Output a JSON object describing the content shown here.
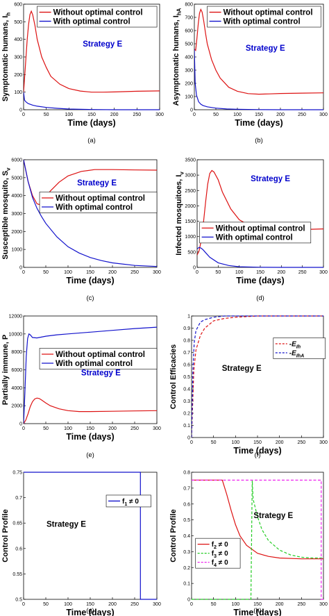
{
  "chart_data": [
    {
      "type": "line",
      "caption": "(a)",
      "xlabel": "Time (days)",
      "ylabel": "Symptomatic humans, I_h",
      "xlim": [
        0,
        300
      ],
      "ylim": [
        0,
        600
      ],
      "xticks": [
        0,
        50,
        100,
        150,
        200,
        250,
        300
      ],
      "yticks": [
        0,
        100,
        200,
        300,
        400,
        500,
        600
      ],
      "annotation": {
        "text": "Strategy E",
        "color": "#0000cc"
      },
      "legend": {
        "position": "top",
        "entries": [
          "Without optimal control",
          "With optimal control"
        ]
      },
      "series": [
        {
          "name": "Without optimal control",
          "color": "#dd1111",
          "x": [
            0,
            2,
            5,
            8,
            11,
            14,
            17,
            20,
            25,
            30,
            40,
            50,
            60,
            80,
            100,
            125,
            150,
            175,
            200,
            225,
            250,
            275,
            300
          ],
          "y": [
            100,
            175,
            290,
            400,
            485,
            540,
            560,
            540,
            480,
            400,
            300,
            240,
            190,
            145,
            120,
            106,
            100,
            100,
            101,
            103,
            105,
            106,
            107
          ]
        },
        {
          "name": "With optimal control",
          "color": "#1111cc",
          "x": [
            0,
            2,
            5,
            10,
            20,
            30,
            50,
            75,
            100,
            150,
            200,
            250,
            300
          ],
          "y": [
            100,
            55,
            45,
            35,
            26,
            20,
            13,
            8,
            4,
            1,
            0,
            0,
            0
          ]
        }
      ]
    },
    {
      "type": "line",
      "caption": "(b)",
      "xlabel": "Time (days)",
      "ylabel": "Asymptomatic humans, I_hA",
      "xlim": [
        0,
        300
      ],
      "ylim": [
        0,
        800
      ],
      "xticks": [
        0,
        50,
        100,
        150,
        200,
        250,
        300
      ],
      "yticks": [
        0,
        100,
        200,
        300,
        400,
        500,
        600,
        700,
        800
      ],
      "annotation": {
        "text": "Strategy E",
        "color": "#0000cc"
      },
      "legend": {
        "position": "top",
        "entries": [
          "Without optimal control",
          "With optimal control"
        ]
      },
      "series": [
        {
          "name": "Without optimal control",
          "color": "#dd1111",
          "x": [
            0,
            3,
            6,
            9,
            12,
            15,
            18,
            22,
            26,
            30,
            40,
            50,
            60,
            80,
            100,
            125,
            150,
            175,
            200,
            250,
            300
          ],
          "y": [
            460,
            450,
            540,
            650,
            730,
            760,
            740,
            670,
            580,
            500,
            380,
            300,
            240,
            170,
            140,
            122,
            118,
            120,
            123,
            126,
            128
          ]
        },
        {
          "name": "With optimal control",
          "color": "#1111cc",
          "x": [
            0,
            2,
            5,
            10,
            15,
            20,
            30,
            50,
            75,
            100,
            150,
            200,
            300
          ],
          "y": [
            460,
            200,
            110,
            60,
            42,
            32,
            22,
            12,
            6,
            3,
            1,
            0,
            0
          ]
        }
      ]
    },
    {
      "type": "line",
      "caption": "(c)",
      "xlabel": "Time (days)",
      "ylabel": "Susceptible mosquito, S_v",
      "xlim": [
        0,
        300
      ],
      "ylim": [
        0,
        6000
      ],
      "xticks": [
        0,
        50,
        100,
        150,
        200,
        250,
        300
      ],
      "yticks": [
        0,
        1000,
        2000,
        3000,
        4000,
        5000,
        6000
      ],
      "annotation": {
        "text": "Strategy E",
        "color": "#0000cc"
      },
      "legend": {
        "position": "center",
        "entries": [
          "Without optimal control",
          "With optimal control"
        ]
      },
      "series": [
        {
          "name": "Without optimal control",
          "color": "#dd1111",
          "x": [
            0,
            10,
            20,
            30,
            35,
            45,
            60,
            80,
            100,
            130,
            160,
            200,
            250,
            300
          ],
          "y": [
            6000,
            4800,
            4000,
            3550,
            3500,
            3750,
            4250,
            4750,
            5100,
            5350,
            5450,
            5450,
            5430,
            5420
          ]
        },
        {
          "name": "With optimal control",
          "color": "#1111cc",
          "x": [
            0,
            10,
            20,
            30,
            40,
            50,
            75,
            100,
            125,
            150,
            175,
            200,
            250,
            300
          ],
          "y": [
            6000,
            4800,
            3900,
            3300,
            2850,
            2450,
            1700,
            1150,
            800,
            550,
            380,
            250,
            110,
            50
          ]
        }
      ]
    },
    {
      "type": "line",
      "caption": "(d)",
      "xlabel": "Time (days)",
      "ylabel": "Infected mosquitoes, I_v",
      "xlim": [
        0,
        300
      ],
      "ylim": [
        0,
        3500
      ],
      "xticks": [
        0,
        50,
        100,
        150,
        200,
        250,
        300
      ],
      "yticks": [
        0,
        500,
        1000,
        1500,
        2000,
        2500,
        3000,
        3500
      ],
      "annotation": {
        "text": "Strategy E",
        "color": "#0000cc"
      },
      "legend": {
        "position": "lower",
        "entries": [
          "Without optimal control",
          "With optimal control"
        ]
      },
      "series": [
        {
          "name": "Without optimal control",
          "color": "#dd1111",
          "x": [
            0,
            5,
            10,
            15,
            20,
            25,
            30,
            35,
            40,
            50,
            60,
            80,
            100,
            125,
            150,
            200,
            250,
            300
          ],
          "y": [
            400,
            550,
            900,
            1450,
            2100,
            2700,
            3050,
            3150,
            3100,
            2850,
            2450,
            1900,
            1550,
            1350,
            1250,
            1220,
            1230,
            1250
          ]
        },
        {
          "name": "With optimal control",
          "color": "#1111cc",
          "x": [
            0,
            5,
            10,
            15,
            20,
            30,
            50,
            75,
            100,
            150,
            200,
            300
          ],
          "y": [
            600,
            650,
            620,
            560,
            480,
            330,
            150,
            60,
            20,
            5,
            0,
            0
          ]
        }
      ]
    },
    {
      "type": "line",
      "caption": "(e)",
      "xlabel": "Time (days)",
      "ylabel": "Partially immune, P",
      "xlim": [
        0,
        300
      ],
      "ylim": [
        0,
        12000
      ],
      "xticks": [
        0,
        50,
        100,
        150,
        200,
        250,
        300
      ],
      "yticks": [
        0,
        2000,
        4000,
        6000,
        8000,
        10000,
        12000
      ],
      "annotation": {
        "text": "Strategy E",
        "color": "#0000cc"
      },
      "legend": {
        "position": "center",
        "entries": [
          "Without optimal control",
          "With optimal control"
        ]
      },
      "series": [
        {
          "name": "Without optimal control",
          "color": "#dd1111",
          "x": [
            0,
            5,
            10,
            15,
            20,
            25,
            30,
            35,
            40,
            50,
            60,
            80,
            100,
            125,
            150,
            200,
            250,
            300
          ],
          "y": [
            0,
            400,
            1100,
            1900,
            2450,
            2750,
            2850,
            2800,
            2650,
            2300,
            2000,
            1650,
            1450,
            1350,
            1350,
            1380,
            1420,
            1450
          ]
        },
        {
          "name": "With optimal control",
          "color": "#1111cc",
          "x": [
            0,
            3,
            6,
            9,
            12,
            15,
            20,
            30,
            40,
            50,
            75,
            100,
            150,
            200,
            250,
            300
          ],
          "y": [
            0,
            3500,
            7500,
            9500,
            10000,
            9900,
            9600,
            9550,
            9650,
            9750,
            9900,
            10000,
            10200,
            10400,
            10600,
            10750
          ]
        }
      ]
    },
    {
      "type": "line",
      "caption": "(f)",
      "xlabel": "Time (days)",
      "ylabel": "Control Efficacies",
      "xlim": [
        0,
        300
      ],
      "ylim": [
        0,
        1
      ],
      "xticks": [
        0,
        50,
        100,
        150,
        200,
        250,
        300
      ],
      "yticks": [
        0,
        0.1,
        0.2,
        0.3,
        0.4,
        0.5,
        0.6,
        0.7,
        0.8,
        0.9,
        1
      ],
      "annotation": {
        "text": "Strategy E",
        "color": "#000000"
      },
      "legend": {
        "position": "top-right",
        "entries": [
          "-E_{I_h}",
          "-E_{I_hA}"
        ]
      },
      "series": [
        {
          "name": "-E_{I_h}",
          "color": "#dd1111",
          "dashed": true,
          "x": [
            0,
            5,
            10,
            20,
            30,
            40,
            50,
            75,
            100,
            150,
            200,
            300
          ],
          "y": [
            0,
            0.55,
            0.72,
            0.84,
            0.9,
            0.93,
            0.96,
            0.98,
            0.99,
            1.0,
            1.0,
            1.0
          ]
        },
        {
          "name": "-E_{I_hA}",
          "color": "#1111cc",
          "dashed": true,
          "x": [
            0,
            3,
            6,
            10,
            20,
            30,
            50,
            75,
            100,
            150,
            300
          ],
          "y": [
            0,
            0.55,
            0.78,
            0.88,
            0.95,
            0.97,
            0.99,
            1.0,
            1.0,
            1.0,
            1.0
          ]
        }
      ]
    },
    {
      "type": "line",
      "caption": "(g)",
      "xlabel": "Time (days)",
      "ylabel": "Control Profile",
      "xlim": [
        0,
        300
      ],
      "ylim": [
        0.5,
        0.75
      ],
      "xticks": [
        0,
        50,
        100,
        150,
        200,
        250,
        300
      ],
      "yticks": [
        0.5,
        0.55,
        0.6,
        0.65,
        0.7,
        0.75
      ],
      "annotation": {
        "text": "Strategy E",
        "color": "#000000"
      },
      "legend": {
        "position": "top-right",
        "entries": [
          "f_1 ≠ 0"
        ]
      },
      "series": [
        {
          "name": "f_1 ≠ 0",
          "color": "#1111cc",
          "x": [
            0,
            263,
            263,
            300
          ],
          "y": [
            0.75,
            0.75,
            0.5,
            0.5
          ]
        }
      ]
    },
    {
      "type": "line",
      "caption": "(h)",
      "xlabel": "Time (days)",
      "ylabel": "Control Profile",
      "xlim": [
        0,
        300
      ],
      "ylim": [
        0,
        0.8
      ],
      "xticks": [
        0,
        50,
        100,
        150,
        200,
        250,
        300
      ],
      "yticks": [
        0,
        0.1,
        0.2,
        0.3,
        0.4,
        0.5,
        0.6,
        0.7,
        0.8
      ],
      "annotation": {
        "text": "Strategy E",
        "color": "#000000"
      },
      "legend": {
        "position": "lower-left",
        "entries": [
          "f_2 ≠ 0",
          "f_3 ≠ 0",
          "f_4 ≠ 0"
        ]
      },
      "series": [
        {
          "name": "f_2 ≠ 0",
          "color": "#dd1111",
          "x": [
            0,
            70,
            80,
            90,
            100,
            110,
            125,
            150,
            175,
            200,
            250,
            300
          ],
          "y": [
            0.75,
            0.75,
            0.66,
            0.56,
            0.47,
            0.4,
            0.34,
            0.29,
            0.27,
            0.26,
            0.255,
            0.255
          ]
        },
        {
          "name": "f_3 ≠ 0",
          "color": "#22cc22",
          "dashed": true,
          "x": [
            0,
            135,
            138,
            140,
            150,
            160,
            175,
            200,
            225,
            250,
            275,
            300
          ],
          "y": [
            0,
            0,
            0.75,
            0.63,
            0.52,
            0.44,
            0.37,
            0.31,
            0.28,
            0.265,
            0.26,
            0.26
          ]
        },
        {
          "name": "f_4 ≠ 0",
          "color": "#ee22ee",
          "dashed": true,
          "x": [
            0,
            295,
            295,
            300
          ],
          "y": [
            0.75,
            0.75,
            0,
            0
          ]
        }
      ]
    }
  ]
}
